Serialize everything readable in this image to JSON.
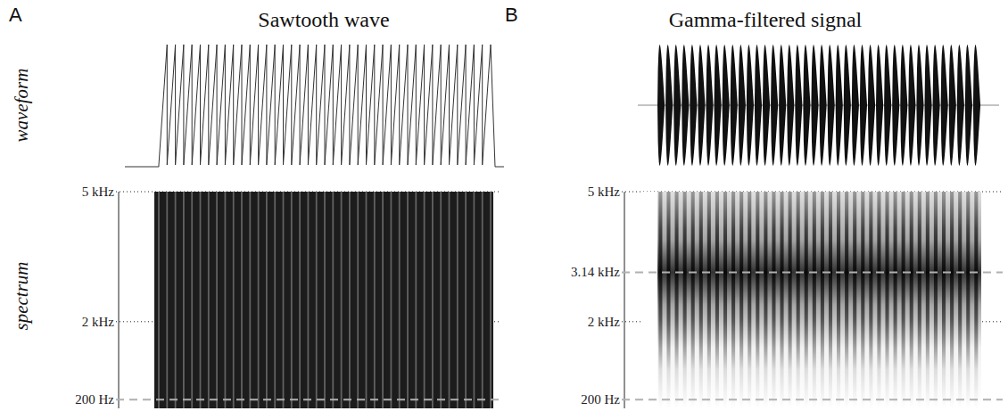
{
  "chart_data": [
    {
      "type": "sawtooth",
      "panel": "A",
      "title": "Sawtooth wave",
      "waveform_label": "waveform",
      "ylabel": "spectrum",
      "periods": 40,
      "ylim": [
        0,
        5000
      ],
      "yticks": [
        {
          "value": 200,
          "label": "200 Hz",
          "line_style": "dashed"
        },
        {
          "value": 2000,
          "label": "2 kHz",
          "line_style": "dotted"
        },
        {
          "value": 5000,
          "label": "5 kHz",
          "line_style": "dotted"
        }
      ]
    },
    {
      "type": "gamma-filtered",
      "panel": "B",
      "title": "Gamma-filtered signal",
      "periods": 40,
      "center_frequency": 3140,
      "ylim": [
        0,
        5000
      ],
      "yticks": [
        {
          "value": 200,
          "label": "200 Hz",
          "line_style": "dashed"
        },
        {
          "value": 2000,
          "label": "2 kHz",
          "line_style": "dotted"
        },
        {
          "value": 3140,
          "label": "3.14 kHz",
          "line_style": "dashed"
        },
        {
          "value": 5000,
          "label": "5 kHz",
          "line_style": "dotted"
        }
      ]
    }
  ]
}
